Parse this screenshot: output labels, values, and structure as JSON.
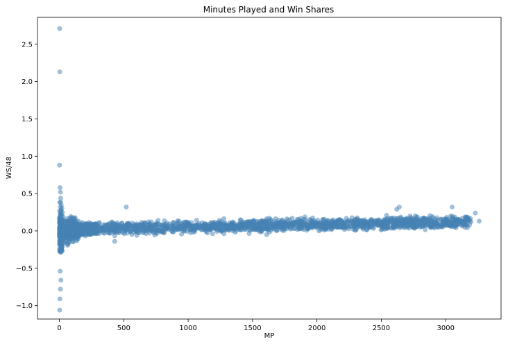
{
  "chart_data": {
    "type": "scatter",
    "title": "Minutes Played and Win Shares",
    "xlabel": "MP",
    "ylabel": "WS/48",
    "xlim": [
      -170,
      3430
    ],
    "ylim": [
      -1.18,
      2.86
    ],
    "xticks": [
      0,
      500,
      1000,
      1500,
      2000,
      2500,
      3000
    ],
    "yticks": [
      -1.0,
      -0.5,
      0.0,
      0.5,
      1.0,
      1.5,
      2.0,
      2.5
    ],
    "ytick_labels": [
      "−1.0",
      "−0.5",
      "0.0",
      "0.5",
      "1.0",
      "1.5",
      "2.0",
      "2.5"
    ],
    "grid": false,
    "legend": null,
    "marker_color": "#4682b4",
    "marker_alpha": 0.5,
    "notable_points": [
      {
        "x": 2,
        "y": 2.71
      },
      {
        "x": 3,
        "y": 2.13
      },
      {
        "x": 2,
        "y": 0.88
      },
      {
        "x": 5,
        "y": 0.58
      },
      {
        "x": 8,
        "y": 0.52
      },
      {
        "x": 10,
        "y": 0.44
      },
      {
        "x": 3,
        "y": 0.38
      },
      {
        "x": 6,
        "y": -0.54
      },
      {
        "x": 12,
        "y": -0.66
      },
      {
        "x": 8,
        "y": -0.78
      },
      {
        "x": 4,
        "y": -0.91
      },
      {
        "x": 2,
        "y": -1.06
      },
      {
        "x": 3260,
        "y": 0.13
      },
      {
        "x": 3230,
        "y": 0.24
      },
      {
        "x": 3050,
        "y": 0.32
      },
      {
        "x": 2640,
        "y": 0.32
      },
      {
        "x": 520,
        "y": 0.32
      },
      {
        "x": 430,
        "y": -0.14
      },
      {
        "x": 1610,
        "y": -0.05
      },
      {
        "x": 2620,
        "y": 0.29
      }
    ],
    "bulk_trend": [
      {
        "x": 0,
        "y": 0.0
      },
      {
        "x": 250,
        "y": 0.03
      },
      {
        "x": 1000,
        "y": 0.055
      },
      {
        "x": 2000,
        "y": 0.085
      },
      {
        "x": 3000,
        "y": 0.11
      },
      {
        "x": 3250,
        "y": 0.13
      }
    ],
    "bulk_x_range": [
      0,
      3200
    ],
    "bulk_spread": 0.055
  }
}
